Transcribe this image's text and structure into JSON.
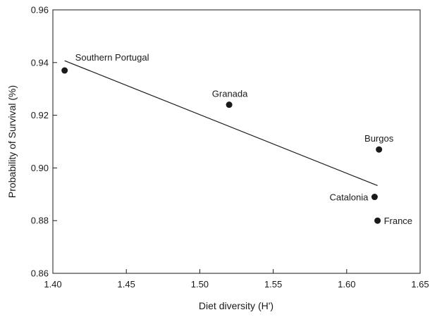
{
  "chart_data": {
    "type": "scatter",
    "title": "",
    "xlabel": "Diet diversity (H')",
    "ylabel": "Probability of Survival (%)",
    "xlim": [
      1.4,
      1.65
    ],
    "ylim": [
      0.86,
      0.96
    ],
    "xticks": [
      "1.40",
      "1.45",
      "1.50",
      "1.55",
      "1.60",
      "1.65"
    ],
    "yticks": [
      "0.86",
      "0.88",
      "0.90",
      "0.92",
      "0.94",
      "0.96"
    ],
    "grid": false,
    "legend": "none",
    "series": [
      {
        "points": [
          {
            "label": "Southern Portugal",
            "x": 1.408,
            "y": 0.937
          },
          {
            "label": "Granada",
            "x": 1.52,
            "y": 0.924
          },
          {
            "label": "Burgos",
            "x": 1.622,
            "y": 0.907
          },
          {
            "label": "Catalonia",
            "x": 1.619,
            "y": 0.889
          },
          {
            "label": "France",
            "x": 1.621,
            "y": 0.88
          }
        ]
      }
    ],
    "trendline": {
      "type": "linear",
      "x_start": 1.408,
      "y_start": 0.9407,
      "x_end": 1.621,
      "y_end": 0.8933
    },
    "colors": {
      "points": "#1a1a1a",
      "line": "#1a1a1a",
      "axis": "#1a1a1a"
    }
  }
}
